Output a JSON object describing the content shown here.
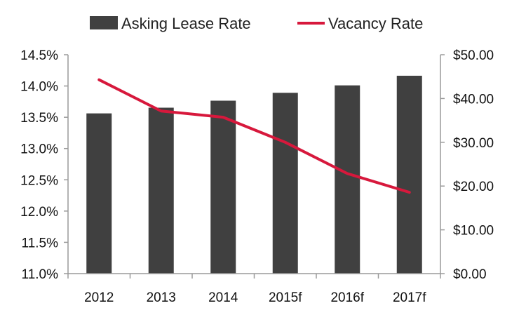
{
  "chart_data": {
    "type": "bar",
    "categories": [
      "2012",
      "2013",
      "2014",
      "2015f",
      "2016f",
      "2017f"
    ],
    "series": [
      {
        "name": "Asking Lease Rate",
        "type": "bar",
        "axis": "right",
        "color": "#404040",
        "values": [
          36.6,
          37.9,
          39.5,
          41.3,
          43.0,
          45.2
        ]
      },
      {
        "name": "Vacancy Rate",
        "type": "line",
        "axis": "left",
        "color": "#d7183c",
        "values": [
          14.1,
          13.6,
          13.5,
          13.1,
          12.6,
          12.3
        ]
      }
    ],
    "y_left": {
      "min": 11.0,
      "max": 14.5,
      "ticks": [
        "11.0%",
        "11.5%",
        "12.0%",
        "12.5%",
        "13.0%",
        "13.5%",
        "14.0%",
        "14.5%"
      ]
    },
    "y_right": {
      "min": 0,
      "max": 50,
      "ticks": [
        "$0.00",
        "$10.00",
        "$20.00",
        "$30.00",
        "$40.00",
        "$50.00"
      ]
    },
    "title": "",
    "xlabel": "",
    "legend_position": "top-center",
    "grid": false
  }
}
